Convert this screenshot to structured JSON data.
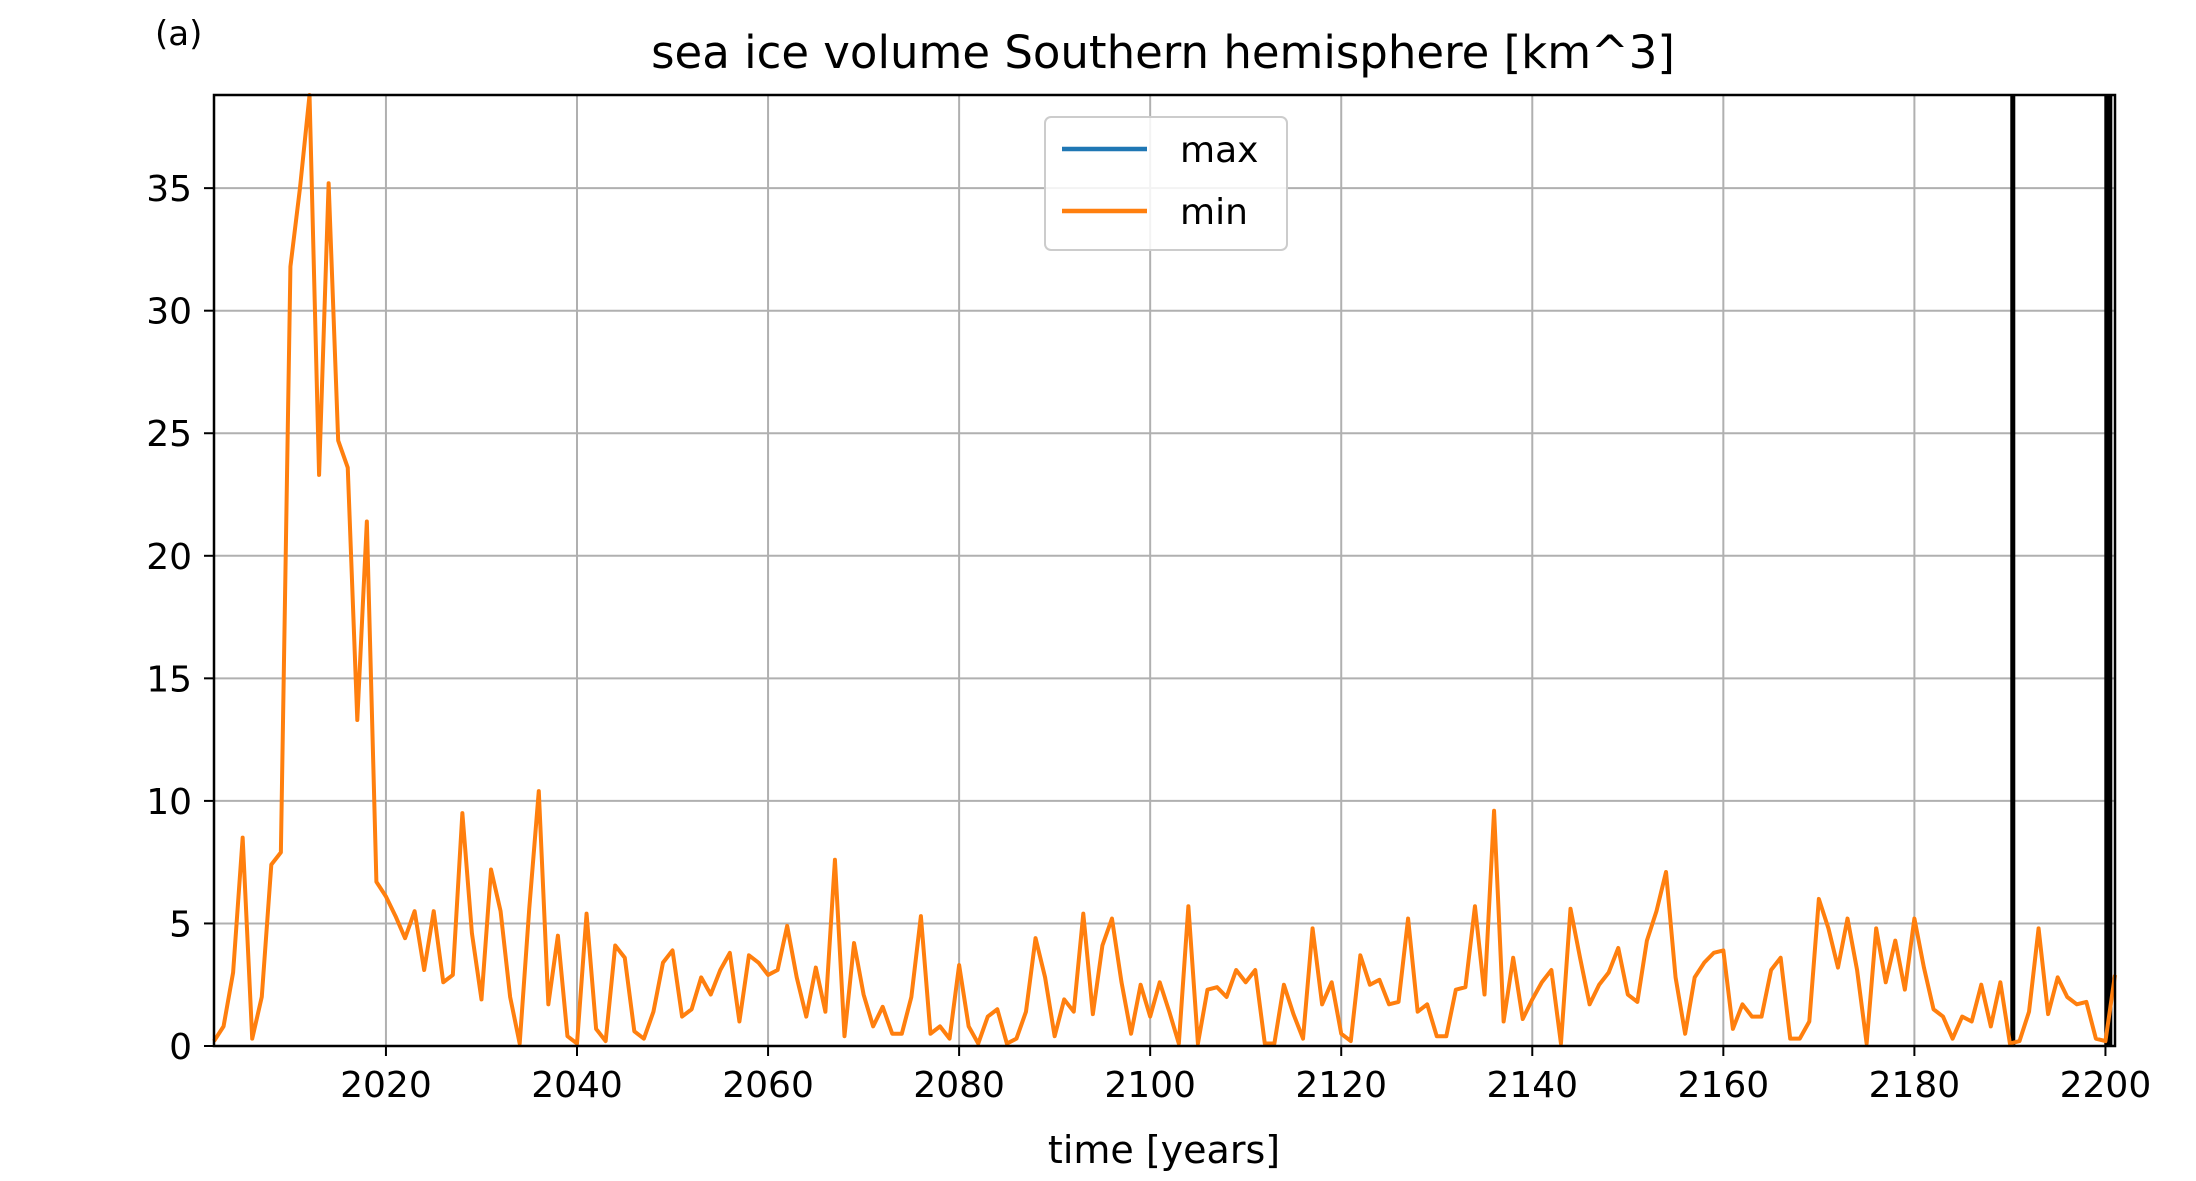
{
  "chart_data": {
    "type": "line",
    "panel_label": "(a)",
    "title": "sea ice volume Southern hemisphere [km^3]",
    "xlabel": "time [years]",
    "ylabel": "",
    "xlim": [
      2002,
      2201
    ],
    "ylim": [
      0,
      38.8
    ],
    "xticks": [
      2020,
      2040,
      2060,
      2080,
      2100,
      2120,
      2140,
      2160,
      2180,
      2200
    ],
    "yticks": [
      0,
      5,
      10,
      15,
      20,
      25,
      30,
      35
    ],
    "grid": true,
    "legend": {
      "placement": "upper-center",
      "entries": [
        "max",
        "min"
      ]
    },
    "vertical_lines": [
      2190.3,
      2200.3
    ],
    "series": [
      {
        "name": "max",
        "color": "#1f77b4",
        "values": []
      },
      {
        "name": "min",
        "color": "#ff7f0e",
        "x_start": 2002,
        "values": [
          0.2,
          0.8,
          3.0,
          8.5,
          0.3,
          2.0,
          7.4,
          7.9,
          31.8,
          35.0,
          38.8,
          23.3,
          35.2,
          24.7,
          23.6,
          13.3,
          21.4,
          6.7,
          6.1,
          5.3,
          4.4,
          5.5,
          3.1,
          5.5,
          2.6,
          2.9,
          9.5,
          4.6,
          1.9,
          7.2,
          5.5,
          2.0,
          0.1,
          5.6,
          10.4,
          1.7,
          4.5,
          0.4,
          0.1,
          5.4,
          0.7,
          0.2,
          4.1,
          3.6,
          0.6,
          0.3,
          1.4,
          3.4,
          3.9,
          1.2,
          1.5,
          2.8,
          2.1,
          3.1,
          3.8,
          1.0,
          3.7,
          3.4,
          2.9,
          3.1,
          4.9,
          2.8,
          1.2,
          3.2,
          1.4,
          7.6,
          0.4,
          4.2,
          2.1,
          0.8,
          1.6,
          0.5,
          0.5,
          2.0,
          5.3,
          0.5,
          0.8,
          0.3,
          3.3,
          0.8,
          0.1,
          1.2,
          1.5,
          0.1,
          0.3,
          1.4,
          4.4,
          2.8,
          0.4,
          1.9,
          1.4,
          5.4,
          1.3,
          4.1,
          5.2,
          2.6,
          0.5,
          2.5,
          1.2,
          2.6,
          1.4,
          0.1,
          5.7,
          0.1,
          2.3,
          2.4,
          2.0,
          3.1,
          2.6,
          3.1,
          0.1,
          0.1,
          2.5,
          1.3,
          0.3,
          4.8,
          1.7,
          2.6,
          0.5,
          0.2,
          3.7,
          2.5,
          2.7,
          1.7,
          1.8,
          5.2,
          1.4,
          1.7,
          0.4,
          0.4,
          2.3,
          2.4,
          5.7,
          2.1,
          9.6,
          1.0,
          3.6,
          1.1,
          1.9,
          2.6,
          3.1,
          0.1,
          5.6,
          3.6,
          1.7,
          2.5,
          3.0,
          4.0,
          2.1,
          1.8,
          4.3,
          5.5,
          7.1,
          2.8,
          0.5,
          2.8,
          3.4,
          3.8,
          3.9,
          0.7,
          1.7,
          1.2,
          1.2,
          3.1,
          3.6,
          0.3,
          0.3,
          1.0,
          6.0,
          4.8,
          3.2,
          5.2,
          3.1,
          0.1,
          4.8,
          2.6,
          4.3,
          2.3,
          5.2,
          3.2,
          1.5,
          1.2,
          0.3,
          1.2,
          1.0,
          2.5,
          0.8,
          2.6,
          0.1,
          0.2,
          1.4,
          4.8,
          1.3,
          2.8,
          2.0,
          1.7,
          1.8,
          0.3,
          0.2,
          2.9
        ]
      }
    ]
  }
}
